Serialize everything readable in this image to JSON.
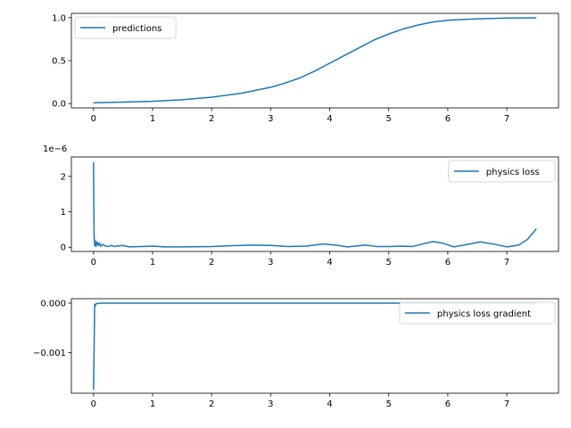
{
  "chart_data": [
    {
      "type": "line",
      "title": "",
      "xlabel": "",
      "ylabel": "",
      "xlim": [
        -0.375,
        7.875
      ],
      "ylim": [
        -0.05,
        1.05
      ],
      "xticks": [
        0,
        1,
        2,
        3,
        4,
        5,
        6,
        7
      ],
      "xtick_labels": [
        "0",
        "1",
        "2",
        "3",
        "4",
        "5",
        "6",
        "7"
      ],
      "yticks": [
        0.0,
        0.5,
        1.0
      ],
      "ytick_labels": [
        "0.0",
        "0.5",
        "1.0"
      ],
      "offset_text": "",
      "grid": false,
      "legend": "upper left",
      "series": [
        {
          "name": "predictions",
          "color": "#1f77b4",
          "x": [
            0,
            0.5,
            1,
            1.5,
            2,
            2.5,
            3,
            3.25,
            3.5,
            3.75,
            4,
            4.25,
            4.5,
            4.75,
            5,
            5.25,
            5.5,
            5.75,
            6,
            6.5,
            7,
            7.5
          ],
          "y": [
            0.01,
            0.017,
            0.027,
            0.045,
            0.074,
            0.12,
            0.19,
            0.24,
            0.3,
            0.38,
            0.47,
            0.56,
            0.65,
            0.74,
            0.81,
            0.87,
            0.915,
            0.95,
            0.97,
            0.987,
            0.995,
            0.998
          ]
        }
      ]
    },
    {
      "type": "line",
      "title": "",
      "xlabel": "",
      "ylabel": "",
      "xlim": [
        -0.375,
        7.875
      ],
      "ylim": [
        -0.12,
        2.55
      ],
      "xticks": [
        0,
        1,
        2,
        3,
        4,
        5,
        6,
        7
      ],
      "xtick_labels": [
        "0",
        "1",
        "2",
        "3",
        "4",
        "5",
        "6",
        "7"
      ],
      "yticks": [
        0,
        1,
        2
      ],
      "ytick_labels": [
        "0",
        "1",
        "2"
      ],
      "offset_text": "1e−6",
      "grid": false,
      "legend": "upper right",
      "series": [
        {
          "name": "physics loss",
          "color": "#1f77b4",
          "x": [
            0,
            0.005,
            0.01,
            0.02,
            0.03,
            0.04,
            0.06,
            0.08,
            0.1,
            0.12,
            0.15,
            0.2,
            0.25,
            0.3,
            0.35,
            0.4,
            0.5,
            0.6,
            0.8,
            1.0,
            1.2,
            1.5,
            2.0,
            2.3,
            2.7,
            3.0,
            3.3,
            3.6,
            3.9,
            4.1,
            4.3,
            4.6,
            4.8,
            5.0,
            5.2,
            5.4,
            5.55,
            5.75,
            5.9,
            6.1,
            6.3,
            6.55,
            6.8,
            7.0,
            7.2,
            7.35,
            7.5
          ],
          "y": [
            2.4,
            1.2,
            0.3,
            0.05,
            0.18,
            0.02,
            0.15,
            0.05,
            0.12,
            0.02,
            0.08,
            0.03,
            0.02,
            0.05,
            0.02,
            0.03,
            0.05,
            0.01,
            0.02,
            0.03,
            0.01,
            0.01,
            0.02,
            0.04,
            0.06,
            0.05,
            0.02,
            0.03,
            0.09,
            0.06,
            0.01,
            0.06,
            0.02,
            0.02,
            0.03,
            0.02,
            0.08,
            0.16,
            0.12,
            0.01,
            0.07,
            0.15,
            0.08,
            0.01,
            0.06,
            0.22,
            0.52
          ]
        }
      ]
    },
    {
      "type": "line",
      "title": "",
      "xlabel": "",
      "ylabel": "",
      "xlim": [
        -0.375,
        7.875
      ],
      "ylim": [
        -0.00182,
        9e-05
      ],
      "xticks": [
        0,
        1,
        2,
        3,
        4,
        5,
        6,
        7
      ],
      "xtick_labels": [
        "0",
        "1",
        "2",
        "3",
        "4",
        "5",
        "6",
        "7"
      ],
      "yticks": [
        0.0,
        -0.001
      ],
      "ytick_labels": [
        "0.000",
        "−0.001"
      ],
      "offset_text": "",
      "grid": false,
      "legend": "upper right",
      "series": [
        {
          "name": "physics loss gradient",
          "color": "#1f77b4",
          "x": [
            0,
            0.02,
            0.03,
            0.05,
            0.08,
            0.1,
            0.2,
            1,
            2,
            3,
            4,
            5,
            6,
            7,
            7.5
          ],
          "y": [
            -0.00175,
            -2e-05,
            -5e-05,
            -5e-06,
            -1e-05,
            0,
            0,
            0,
            0,
            0,
            0,
            0,
            0,
            0,
            0
          ]
        }
      ]
    }
  ]
}
